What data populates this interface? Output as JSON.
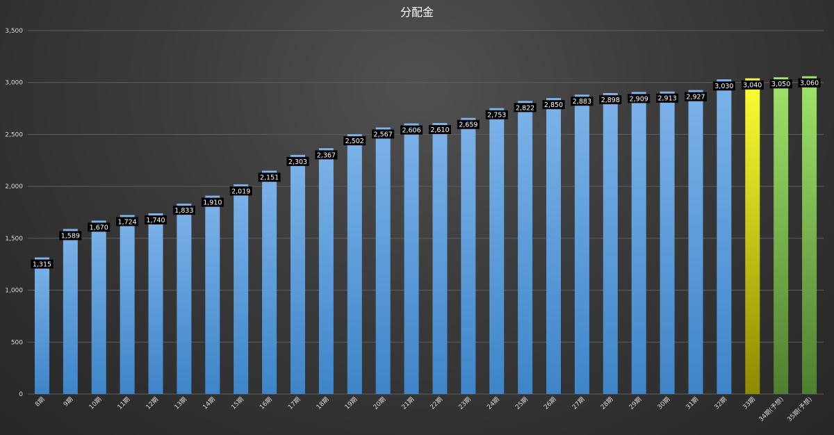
{
  "chart_data": {
    "type": "bar",
    "title": "分配金",
    "xlabel": "",
    "ylabel": "",
    "ylim": [
      0,
      3500
    ],
    "yticks": [
      0,
      500,
      1000,
      1500,
      2000,
      2500,
      3000,
      3500
    ],
    "ytick_labels": [
      "0",
      "500",
      "1,000",
      "1,500",
      "2,000",
      "2,500",
      "3,000",
      "3,500"
    ],
    "grid": true,
    "legend": "none",
    "categories": [
      "8期",
      "9期",
      "10期",
      "11期",
      "12期",
      "13期",
      "14期",
      "15期",
      "16期",
      "17期",
      "18期",
      "19期",
      "20期",
      "21期",
      "22期",
      "23期",
      "24期",
      "25期",
      "26期",
      "27期",
      "28期",
      "29期",
      "30期",
      "31期",
      "32期",
      "33期",
      "34期(予想)",
      "35期(予想)"
    ],
    "values": [
      1315,
      1589,
      1670,
      1724,
      1740,
      1833,
      1910,
      2019,
      2151,
      2303,
      2367,
      2502,
      2567,
      2606,
      2610,
      2659,
      2753,
      2822,
      2850,
      2883,
      2898,
      2909,
      2913,
      2927,
      3030,
      3040,
      3050,
      3060
    ],
    "data_labels": [
      "1,315",
      "1,589",
      "1,670",
      "1,724",
      "1,740",
      "1,833",
      "1,910",
      "2,019",
      "2,151",
      "2,303",
      "2,367",
      "2,502",
      "2,567",
      "2,606",
      "2,610",
      "2,659",
      "2,753",
      "2,822",
      "2,850",
      "2,883",
      "2,898",
      "2,909",
      "2,913",
      "2,927",
      "3,030",
      "3,040",
      "3,050",
      "3,060"
    ],
    "bar_styles": [
      "actual",
      "actual",
      "actual",
      "actual",
      "actual",
      "actual",
      "actual",
      "actual",
      "actual",
      "actual",
      "actual",
      "actual",
      "actual",
      "actual",
      "actual",
      "actual",
      "actual",
      "actual",
      "actual",
      "actual",
      "actual",
      "actual",
      "actual",
      "actual",
      "actual",
      "latest",
      "forecast",
      "forecast"
    ],
    "colors": {
      "actual_top": "#7db3ea",
      "actual_bottom": "#3d85c8",
      "latest_top": "#ffff33",
      "latest_bottom": "#8c8a00",
      "forecast_top": "#a0e46a",
      "forecast_bottom": "#4e7f2f",
      "label_bg": "#000000",
      "label_text": "#ffffff"
    }
  }
}
